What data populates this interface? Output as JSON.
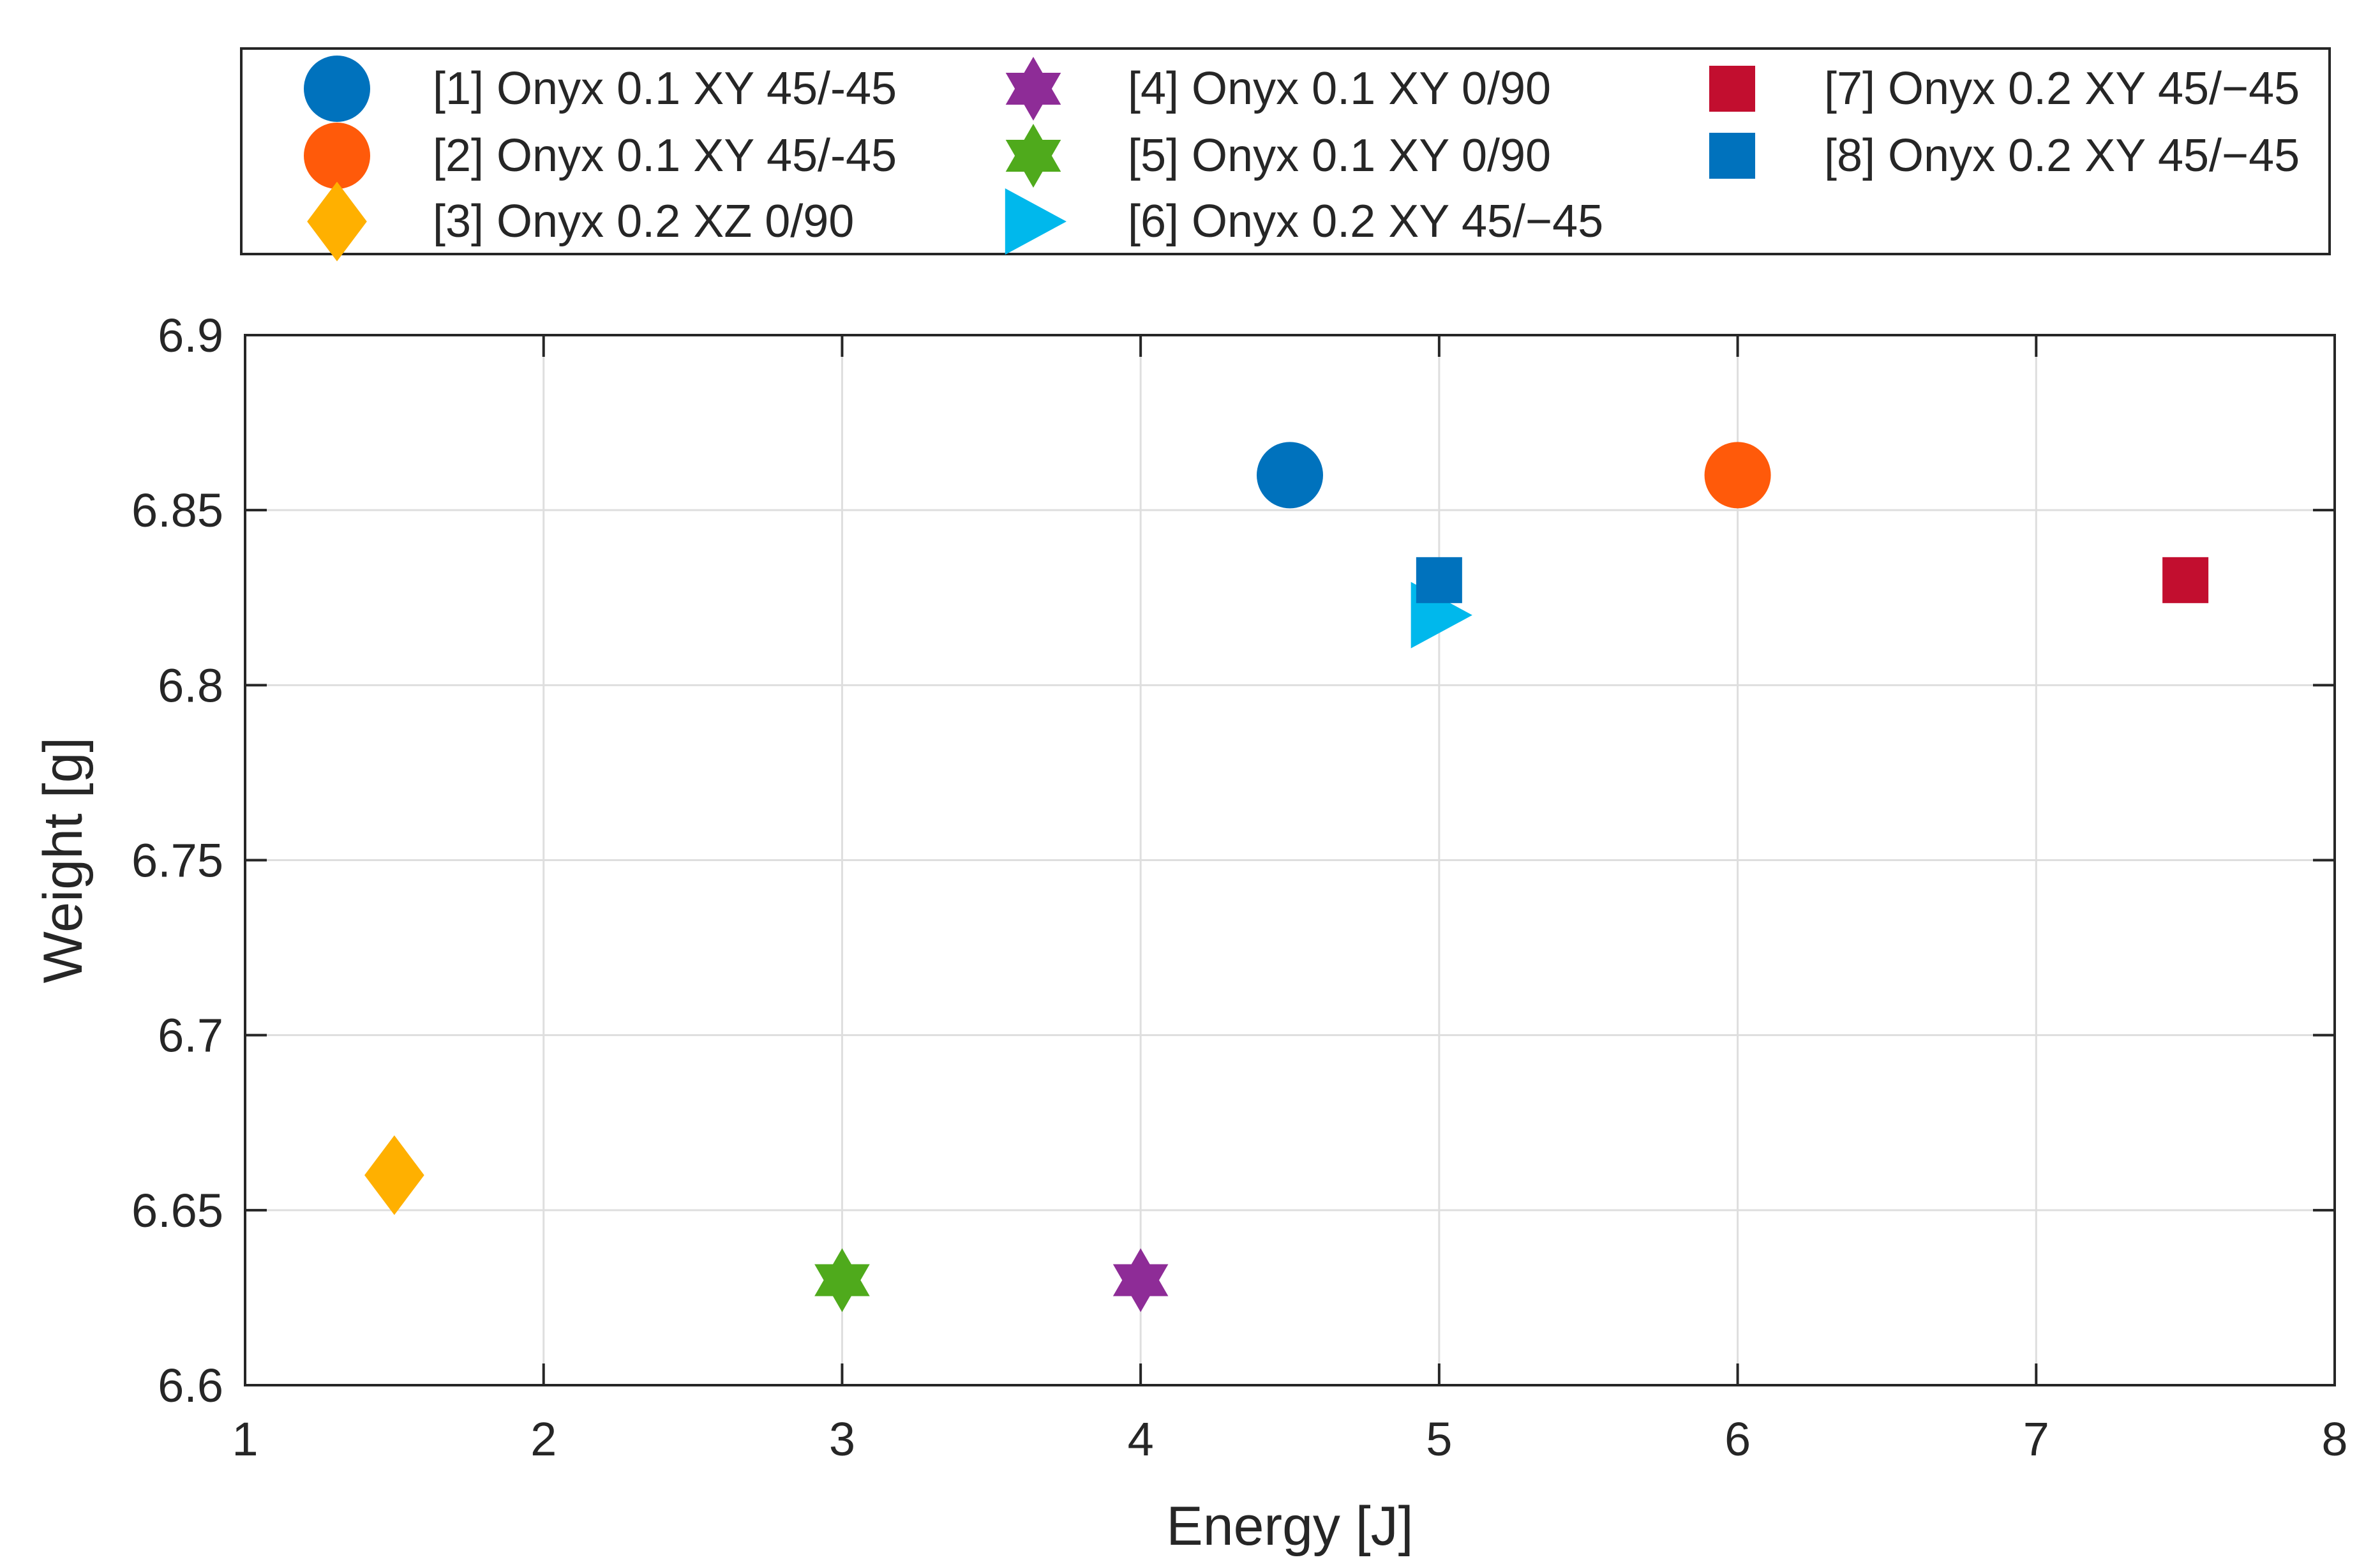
{
  "chart_data": {
    "type": "scatter",
    "title": "",
    "xlabel": "Energy [J]",
    "ylabel": "Weight [g]",
    "xlim": [
      1,
      8
    ],
    "ylim": [
      6.6,
      6.9
    ],
    "xticks": [
      1,
      2,
      3,
      4,
      5,
      6,
      7,
      8
    ],
    "yticks": [
      6.6,
      6.65,
      6.7,
      6.75,
      6.8,
      6.85,
      6.9
    ],
    "xtick_labels": [
      "1",
      "2",
      "3",
      "4",
      "5",
      "6",
      "7",
      "8"
    ],
    "ytick_labels": [
      "6.6",
      "6.65",
      "6.7",
      "6.75",
      "6.8",
      "6.85",
      "6.9"
    ],
    "grid": true,
    "legend_position": "top-outside",
    "series": [
      {
        "name": "[1] Onyx 0.1 XY 45/-45",
        "marker": "circle",
        "color": "#0072BD",
        "x": [
          4.5
        ],
        "y": [
          6.86
        ]
      },
      {
        "name": "[2] Onyx 0.1 XY 45/-45",
        "marker": "circle",
        "color": "#FF5A0A",
        "x": [
          6.0
        ],
        "y": [
          6.86
        ]
      },
      {
        "name": "[3] Onyx 0.2 XZ 0/90",
        "marker": "diamond",
        "color": "#FFB000",
        "x": [
          1.5
        ],
        "y": [
          6.66
        ]
      },
      {
        "name": "[4] Onyx 0.1 XY 0/90",
        "marker": "hexagram",
        "color": "#8E2C97",
        "x": [
          4.0
        ],
        "y": [
          6.63
        ]
      },
      {
        "name": "[5] Onyx 0.1 XY 0/90",
        "marker": "hexagram",
        "color": "#4FAA1C",
        "x": [
          3.0
        ],
        "y": [
          6.63
        ]
      },
      {
        "name": "[6] Onyx 0.2 XY 45/−45",
        "marker": "triangle-right",
        "color": "#00B8EC",
        "x": [
          5.0
        ],
        "y": [
          6.82
        ]
      },
      {
        "name": "[7] Onyx 0.2 XY 45/−45",
        "marker": "square",
        "color": "#C20E2F",
        "x": [
          7.5
        ],
        "y": [
          6.83
        ]
      },
      {
        "name": "[8] Onyx 0.2 XY 45/−45",
        "marker": "square",
        "color": "#0072BD",
        "x": [
          5.0
        ],
        "y": [
          6.83
        ]
      }
    ]
  }
}
